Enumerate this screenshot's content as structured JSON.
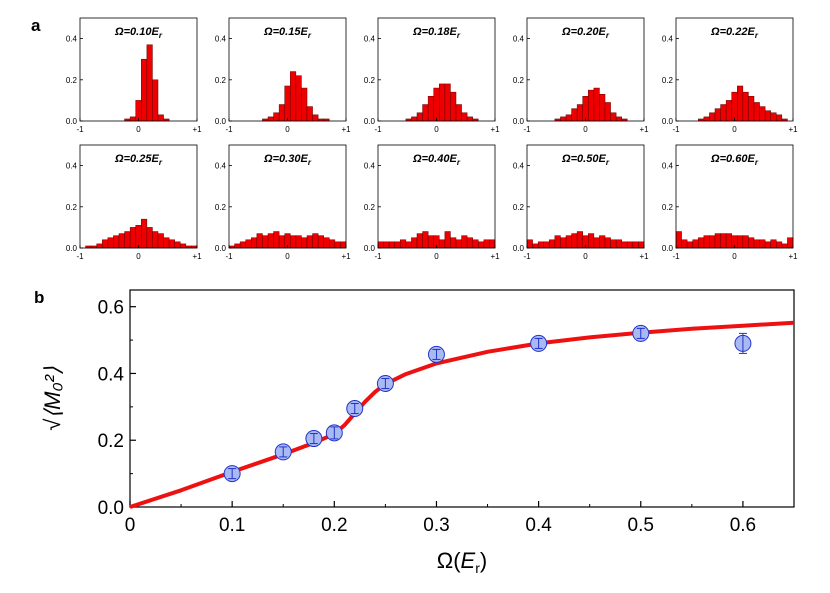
{
  "panel_labels": {
    "a": "a",
    "b": "b"
  },
  "chart_data": [
    {
      "type": "bar",
      "panel": "a",
      "description_hidden": true,
      "x_range": [
        -1,
        1
      ],
      "y_range": [
        0,
        0.5
      ],
      "x_tick_labels": [
        "-1",
        "0",
        "+1"
      ],
      "y_tick_labels": [
        "0.0",
        "0.2",
        "0.4"
      ],
      "bins": 21,
      "histograms": [
        {
          "title": "Ω=0.10E",
          "sub": "r",
          "values": [
            0,
            0,
            0,
            0,
            0,
            0,
            0,
            0,
            0.01,
            0.02,
            0.1,
            0.3,
            0.37,
            0.2,
            0.03,
            0.01,
            0,
            0,
            0,
            0,
            0
          ]
        },
        {
          "title": "Ω=0.15E",
          "sub": "r",
          "values": [
            0,
            0,
            0,
            0,
            0,
            0,
            0.01,
            0.02,
            0.04,
            0.08,
            0.17,
            0.24,
            0.22,
            0.16,
            0.07,
            0.03,
            0.01,
            0.01,
            0,
            0,
            0
          ]
        },
        {
          "title": "Ω=0.18E",
          "sub": "r",
          "values": [
            0,
            0,
            0,
            0,
            0,
            0.01,
            0.02,
            0.04,
            0.08,
            0.12,
            0.16,
            0.18,
            0.18,
            0.14,
            0.08,
            0.04,
            0.02,
            0.01,
            0,
            0,
            0
          ]
        },
        {
          "title": "Ω=0.20E",
          "sub": "r",
          "values": [
            0,
            0,
            0,
            0,
            0,
            0.01,
            0.02,
            0.03,
            0.06,
            0.08,
            0.12,
            0.15,
            0.16,
            0.13,
            0.09,
            0.04,
            0.02,
            0.01,
            0,
            0,
            0
          ]
        },
        {
          "title": "Ω=0.22E",
          "sub": "r",
          "values": [
            0,
            0,
            0,
            0,
            0.01,
            0.02,
            0.04,
            0.06,
            0.08,
            0.1,
            0.14,
            0.17,
            0.14,
            0.12,
            0.09,
            0.07,
            0.05,
            0.04,
            0.03,
            0.01,
            0
          ]
        },
        {
          "title": "Ω=0.25E",
          "sub": "r",
          "values": [
            0,
            0.01,
            0.01,
            0.02,
            0.04,
            0.05,
            0.06,
            0.07,
            0.08,
            0.1,
            0.11,
            0.14,
            0.1,
            0.08,
            0.07,
            0.05,
            0.04,
            0.03,
            0.02,
            0.01,
            0.01
          ]
        },
        {
          "title": "Ω=0.30E",
          "sub": "r",
          "values": [
            0.01,
            0.02,
            0.03,
            0.04,
            0.05,
            0.07,
            0.06,
            0.07,
            0.08,
            0.06,
            0.07,
            0.06,
            0.06,
            0.05,
            0.06,
            0.07,
            0.06,
            0.05,
            0.04,
            0.03,
            0.03
          ]
        },
        {
          "title": "Ω=0.40E",
          "sub": "r",
          "values": [
            0.03,
            0.03,
            0.03,
            0.03,
            0.04,
            0.03,
            0.05,
            0.07,
            0.08,
            0.06,
            0.06,
            0.04,
            0.08,
            0.05,
            0.04,
            0.06,
            0.05,
            0.04,
            0.03,
            0.04,
            0.04
          ]
        },
        {
          "title": "Ω=0.50E",
          "sub": "r",
          "values": [
            0.04,
            0.02,
            0.03,
            0.03,
            0.04,
            0.06,
            0.05,
            0.06,
            0.07,
            0.08,
            0.06,
            0.07,
            0.05,
            0.06,
            0.05,
            0.04,
            0.04,
            0.03,
            0.03,
            0.03,
            0.03
          ]
        },
        {
          "title": "Ω=0.60E",
          "sub": "r",
          "values": [
            0.08,
            0.04,
            0.03,
            0.04,
            0.05,
            0.06,
            0.06,
            0.07,
            0.07,
            0.07,
            0.06,
            0.06,
            0.06,
            0.05,
            0.04,
            0.04,
            0.03,
            0.04,
            0.03,
            0.02,
            0.05
          ]
        }
      ]
    },
    {
      "type": "scatter",
      "panel": "b",
      "xlabel": "Ω(",
      "xlabel_var": "E",
      "xlabel_sub": "r",
      "xlabel_close": ")",
      "ylabel": "√⟨M₀²⟩",
      "xlim": [
        0,
        0.65
      ],
      "ylim": [
        0,
        0.65
      ],
      "x_ticks": [
        0,
        0.1,
        0.2,
        0.3,
        0.4,
        0.5,
        0.6
      ],
      "x_tick_labels": [
        "0",
        "0.1",
        "0.2",
        "0.3",
        "0.4",
        "0.5",
        "0.6"
      ],
      "y_ticks": [
        0,
        0.2,
        0.4,
        0.6
      ],
      "y_tick_labels": [
        "0.0",
        "0.2",
        "0.4",
        "0.6"
      ],
      "points": [
        {
          "x": 0.1,
          "y": 0.1,
          "err": 0.015
        },
        {
          "x": 0.15,
          "y": 0.165,
          "err": 0.015
        },
        {
          "x": 0.18,
          "y": 0.205,
          "err": 0.015
        },
        {
          "x": 0.2,
          "y": 0.222,
          "err": 0.018
        },
        {
          "x": 0.22,
          "y": 0.295,
          "err": 0.015
        },
        {
          "x": 0.25,
          "y": 0.37,
          "err": 0.015
        },
        {
          "x": 0.3,
          "y": 0.457,
          "err": 0.015
        },
        {
          "x": 0.4,
          "y": 0.49,
          "err": 0.015
        },
        {
          "x": 0.5,
          "y": 0.52,
          "err": 0.015
        },
        {
          "x": 0.6,
          "y": 0.49,
          "err": 0.03
        }
      ],
      "curve": {
        "x": [
          0,
          0.05,
          0.1,
          0.15,
          0.18,
          0.2,
          0.21,
          0.22,
          0.23,
          0.24,
          0.25,
          0.27,
          0.3,
          0.35,
          0.4,
          0.45,
          0.5,
          0.55,
          0.6,
          0.65
        ],
        "y": [
          0,
          0.05,
          0.105,
          0.158,
          0.192,
          0.219,
          0.245,
          0.28,
          0.315,
          0.345,
          0.368,
          0.398,
          0.43,
          0.465,
          0.49,
          0.508,
          0.522,
          0.534,
          0.543,
          0.552
        ]
      },
      "colors": {
        "curve": "#ee1111",
        "marker_fill": "#a9b9f2",
        "marker_edge": "#2233cc",
        "bar_fill": "#ee0000",
        "bar_edge": "#660000"
      }
    }
  ]
}
